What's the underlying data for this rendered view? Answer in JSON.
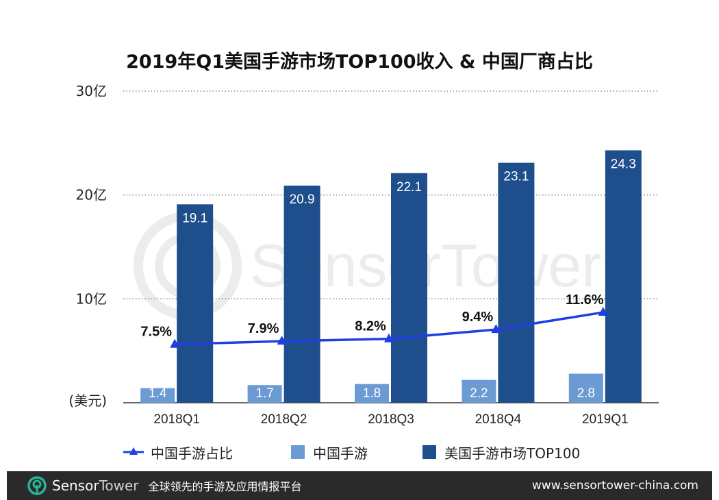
{
  "title": "2019年Q1美国手游市场TOP100收入 & 中国厂商占比",
  "chart_data": {
    "type": "bar",
    "title": "2019年Q1美国手游市场TOP100收入 & 中国厂商占比",
    "categories": [
      "2018Q1",
      "2018Q2",
      "2018Q3",
      "2018Q4",
      "2019Q1"
    ],
    "series": [
      {
        "name": "中国手游",
        "values": [
          1.4,
          1.7,
          1.8,
          2.2,
          2.8
        ],
        "color": "#6b9bd2",
        "labels": [
          "1.4",
          "1.7",
          "1.8",
          "2.2",
          "2.8"
        ]
      },
      {
        "name": "美国手游市场TOP100",
        "values": [
          19.1,
          20.9,
          22.1,
          23.1,
          24.3
        ],
        "color": "#1f4e8c",
        "labels": [
          "19.1",
          "20.9",
          "22.1",
          "23.1",
          "24.3"
        ]
      }
    ],
    "line_series": {
      "name": "中国手游占比",
      "values": [
        7.5,
        7.9,
        8.2,
        9.4,
        11.6
      ],
      "labels": [
        "7.5%",
        "7.9%",
        "8.2%",
        "9.4%",
        "11.6%"
      ],
      "color": "#1f3fe0"
    },
    "ylim": [
      0,
      30
    ],
    "yticks": [
      {
        "value": 10,
        "label": "10亿"
      },
      {
        "value": 20,
        "label": "20亿"
      },
      {
        "value": 30,
        "label": "30亿"
      }
    ],
    "ylabel": "(美元)",
    "grid": true
  },
  "legend": {
    "line_label": "中国手游占比",
    "cn_label": "中国手游",
    "us_label": "美国手游市场TOP100"
  },
  "watermark": "SensorTower",
  "footer": {
    "brand_a": "Sensor",
    "brand_b": "Tower",
    "tagline": "全球领先的手游及应用情报平台",
    "url": "www.sensortower-china.com"
  }
}
